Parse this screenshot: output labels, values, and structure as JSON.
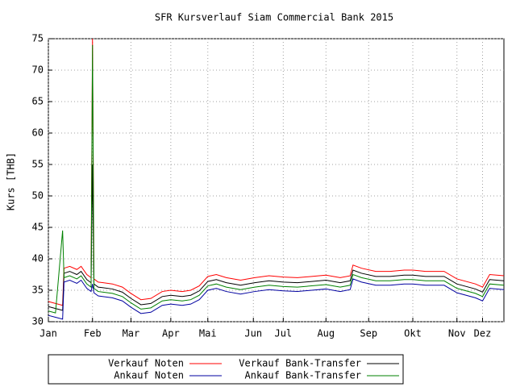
{
  "chart_data": {
    "type": "line",
    "title": "SFR Kursverlauf Siam Commercial Bank 2015",
    "y_label": "Kurs [THB]",
    "xlim": [
      0,
      320
    ],
    "xticks": [
      {
        "value": 0,
        "label": "Jan"
      },
      {
        "value": 31,
        "label": "Feb"
      },
      {
        "value": 58,
        "label": "Mar"
      },
      {
        "value": 86,
        "label": "Apr"
      },
      {
        "value": 112,
        "label": "Mai"
      },
      {
        "value": 144,
        "label": "Jun"
      },
      {
        "value": 165,
        "label": "Jul"
      },
      {
        "value": 195,
        "label": "Aug"
      },
      {
        "value": 225,
        "label": "Sep"
      },
      {
        "value": 256,
        "label": "Okt"
      },
      {
        "value": 287,
        "label": "Nov"
      },
      {
        "value": 305,
        "label": "Dez"
      }
    ],
    "ylim": [
      30,
      75
    ],
    "yticks": [
      30,
      35,
      40,
      45,
      50,
      55,
      60,
      65,
      70,
      75
    ],
    "grid": true,
    "legend": "bottom",
    "x": [
      0,
      5,
      10,
      11,
      15,
      20,
      23,
      27,
      30,
      31,
      32,
      35,
      45,
      52,
      58,
      65,
      72,
      80,
      86,
      94,
      100,
      106,
      112,
      118,
      125,
      135,
      145,
      155,
      165,
      175,
      185,
      195,
      205,
      212,
      214,
      220,
      230,
      240,
      250,
      256,
      265,
      278,
      287,
      300,
      305,
      310,
      320
    ],
    "series": [
      {
        "name": "Verkauf Noten",
        "color": "#ff0000",
        "values": [
          33.2,
          32.9,
          32.6,
          38.5,
          38.8,
          38.3,
          38.8,
          37.5,
          37.0,
          75,
          36.8,
          36.3,
          36.0,
          35.5,
          34.5,
          33.5,
          33.7,
          34.8,
          35.0,
          34.8,
          35.0,
          35.7,
          37.2,
          37.5,
          37.0,
          36.6,
          37.0,
          37.3,
          37.1,
          37.0,
          37.2,
          37.4,
          37.0,
          37.3,
          39.0,
          38.5,
          38.0,
          38.0,
          38.2,
          38.2,
          38.0,
          38.0,
          36.8,
          36.0,
          35.5,
          37.5,
          37.3
        ]
      },
      {
        "name": "Verkauf Bank-Transfer",
        "color": "#000000",
        "values": [
          32.4,
          32.1,
          31.8,
          37.7,
          38.0,
          37.5,
          38.0,
          36.7,
          36.2,
          55,
          36.0,
          35.5,
          35.2,
          34.7,
          33.7,
          32.7,
          32.9,
          34.0,
          34.2,
          34.0,
          34.2,
          34.9,
          36.4,
          36.7,
          36.2,
          35.8,
          36.2,
          36.5,
          36.3,
          36.2,
          36.4,
          36.6,
          36.2,
          36.5,
          38.2,
          37.7,
          37.2,
          37.2,
          37.4,
          37.4,
          37.2,
          37.2,
          36.0,
          35.2,
          34.7,
          36.7,
          36.5
        ]
      },
      {
        "name": "Ankauf Noten",
        "color": "#0000a0",
        "values": [
          31.0,
          30.7,
          30.4,
          36.3,
          36.6,
          36.1,
          36.6,
          35.3,
          34.8,
          36.0,
          34.6,
          34.1,
          33.8,
          33.3,
          32.3,
          31.3,
          31.5,
          32.6,
          32.8,
          32.6,
          32.8,
          33.5,
          35.0,
          35.3,
          34.8,
          34.4,
          34.8,
          35.1,
          34.9,
          34.8,
          35.0,
          35.2,
          34.8,
          35.1,
          36.8,
          36.3,
          35.8,
          35.8,
          36.0,
          36.0,
          35.8,
          35.8,
          34.6,
          33.8,
          33.3,
          35.3,
          35.1
        ]
      },
      {
        "name": "Ankauf Bank-Transfer",
        "color": "#008000",
        "values": [
          31.7,
          31.4,
          44.5,
          37.0,
          37.3,
          36.8,
          37.3,
          36.0,
          35.5,
          74,
          35.3,
          34.8,
          34.5,
          34.0,
          33.0,
          32.0,
          32.2,
          33.3,
          33.5,
          33.3,
          33.5,
          34.2,
          35.7,
          36.0,
          35.5,
          35.1,
          35.5,
          35.8,
          35.6,
          35.5,
          35.7,
          35.9,
          35.5,
          35.8,
          37.5,
          37.0,
          36.5,
          36.5,
          36.7,
          36.7,
          36.5,
          36.5,
          35.3,
          34.5,
          34.0,
          36.0,
          35.8
        ]
      }
    ]
  }
}
